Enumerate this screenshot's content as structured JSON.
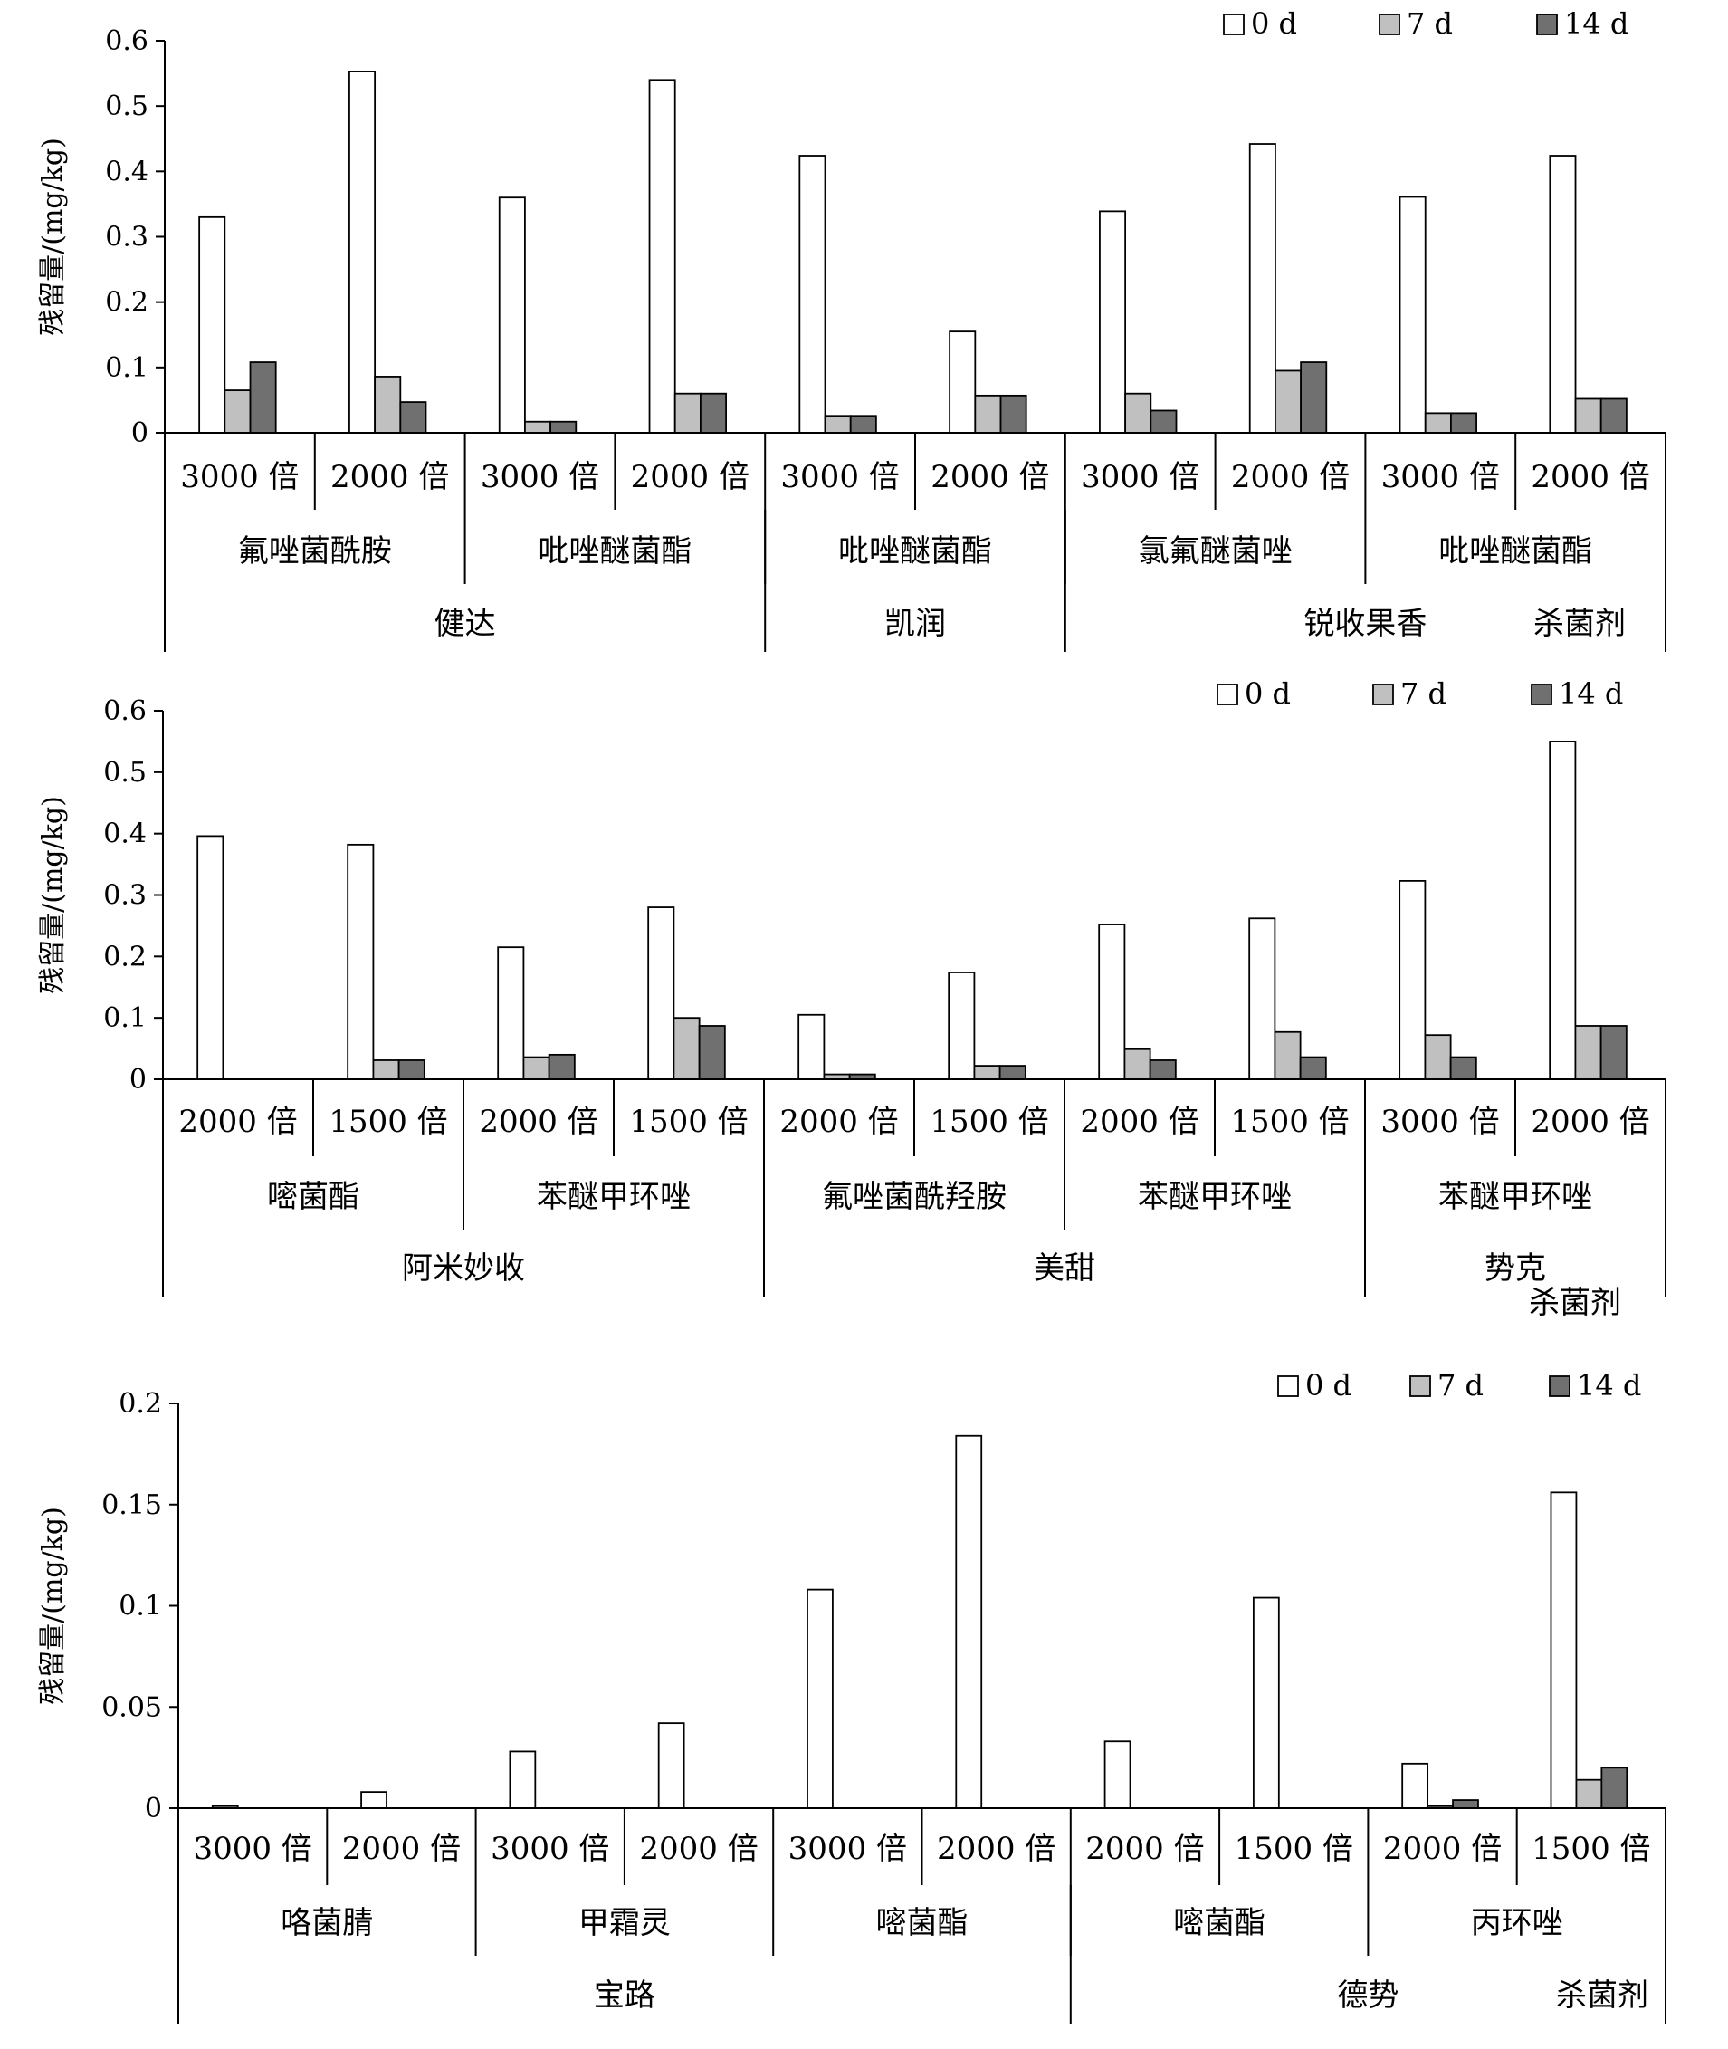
{
  "chart_data": [
    {
      "type": "bar",
      "ylabel": "残留量/(mg/kg)",
      "ylim": [
        0,
        0.6
      ],
      "yticks": [
        "0",
        "0.1",
        "0.2",
        "0.3",
        "0.4",
        "0.5",
        "0.6"
      ],
      "legend_position": "top-right",
      "series_names": [
        "0 d",
        "7 d",
        "14 d"
      ],
      "series_colors": [
        "#ffffff",
        "#c0c0c0",
        "#707070"
      ],
      "categories": [
        "3000 倍",
        "2000 倍",
        "3000 倍",
        "2000 倍",
        "3000 倍",
        "2000 倍",
        "3000 倍",
        "2000 倍",
        "3000 倍",
        "2000 倍"
      ],
      "values": [
        [
          0.33,
          0.065,
          0.108
        ],
        [
          0.553,
          0.086,
          0.047
        ],
        [
          0.36,
          0.017,
          0.017
        ],
        [
          0.54,
          0.06,
          0.06
        ],
        [
          0.424,
          0.026,
          0.026
        ],
        [
          0.155,
          0.057,
          0.057
        ],
        [
          0.339,
          0.06,
          0.034
        ],
        [
          0.442,
          0.095,
          0.108
        ],
        [
          0.361,
          0.03,
          0.03
        ],
        [
          0.424,
          0.052,
          0.052
        ]
      ],
      "groups": [
        {
          "label": "氟唑菌酰胺",
          "span": [
            0,
            2
          ]
        },
        {
          "label": "吡唑醚菌酯",
          "span": [
            2,
            4
          ]
        },
        {
          "label": "吡唑醚菌酯",
          "span": [
            4,
            6
          ]
        },
        {
          "label": "氯氟醚菌唑",
          "span": [
            6,
            8
          ]
        },
        {
          "label": "吡唑醚菌酯",
          "span": [
            8,
            10
          ]
        }
      ],
      "products": [
        {
          "label": "健达",
          "span": [
            0,
            4
          ]
        },
        {
          "label": "凯润",
          "span": [
            4,
            6
          ]
        },
        {
          "label": "锐收果香",
          "span": [
            6,
            10
          ]
        }
      ],
      "corner_label": "杀菌剂"
    },
    {
      "type": "bar",
      "ylabel": "残留量/(mg/kg)",
      "ylim": [
        0,
        0.6
      ],
      "yticks": [
        "0",
        "0.1",
        "0.2",
        "0.3",
        "0.4",
        "0.5",
        "0.6"
      ],
      "legend_position": "top-right",
      "series_names": [
        "0 d",
        "7 d",
        "14 d"
      ],
      "series_colors": [
        "#ffffff",
        "#c0c0c0",
        "#707070"
      ],
      "categories": [
        "2000 倍",
        "1500 倍",
        "2000 倍",
        "1500 倍",
        "2000 倍",
        "1500 倍",
        "2000 倍",
        "1500 倍",
        "3000 倍",
        "2000 倍"
      ],
      "values": [
        [
          0.396,
          0.0,
          0.0
        ],
        [
          0.382,
          0.031,
          0.031
        ],
        [
          0.215,
          0.036,
          0.04
        ],
        [
          0.28,
          0.1,
          0.087
        ],
        [
          0.105,
          0.008,
          0.008
        ],
        [
          0.174,
          0.022,
          0.022
        ],
        [
          0.252,
          0.049,
          0.031
        ],
        [
          0.262,
          0.077,
          0.036
        ],
        [
          0.323,
          0.072,
          0.036
        ],
        [
          0.55,
          0.087,
          0.087
        ]
      ],
      "groups": [
        {
          "label": "嘧菌酯",
          "span": [
            0,
            2
          ]
        },
        {
          "label": "苯醚甲环唑",
          "span": [
            2,
            4
          ]
        },
        {
          "label": "氟唑菌酰羟胺",
          "span": [
            4,
            6
          ]
        },
        {
          "label": "苯醚甲环唑",
          "span": [
            6,
            8
          ]
        },
        {
          "label": "苯醚甲环唑",
          "span": [
            8,
            10
          ]
        }
      ],
      "products": [
        {
          "label": "阿米妙收",
          "span": [
            0,
            4
          ]
        },
        {
          "label": "美甜",
          "span": [
            4,
            8
          ]
        },
        {
          "label": "势克",
          "span": [
            8,
            10
          ]
        }
      ],
      "corner_label": "杀菌剂"
    },
    {
      "type": "bar",
      "ylabel": "残留量/(mg/kg)",
      "ylim": [
        0,
        0.2
      ],
      "yticks": [
        "0",
        "0.05",
        "0.1",
        "0.15",
        "0.2"
      ],
      "legend_position": "top-right",
      "series_names": [
        "0 d",
        "7 d",
        "14 d"
      ],
      "series_colors": [
        "#ffffff",
        "#c0c0c0",
        "#707070"
      ],
      "categories": [
        "3000 倍",
        "2000 倍",
        "3000 倍",
        "2000 倍",
        "3000 倍",
        "2000 倍",
        "2000 倍",
        "1500 倍",
        "2000 倍",
        "1500 倍"
      ],
      "values": [
        [
          0.001,
          0.0,
          0.0
        ],
        [
          0.008,
          0.0,
          0.0
        ],
        [
          0.028,
          0.0,
          0.0
        ],
        [
          0.042,
          0.0,
          0.0
        ],
        [
          0.108,
          0.0,
          0.0
        ],
        [
          0.184,
          0.0,
          0.0
        ],
        [
          0.033,
          0.0,
          0.0
        ],
        [
          0.104,
          0.0,
          0.0
        ],
        [
          0.022,
          0.001,
          0.004
        ],
        [
          0.156,
          0.014,
          0.02
        ]
      ],
      "groups": [
        {
          "label": "咯菌腈",
          "span": [
            0,
            2
          ]
        },
        {
          "label": "甲霜灵",
          "span": [
            2,
            4
          ]
        },
        {
          "label": "嘧菌酯",
          "span": [
            4,
            6
          ]
        },
        {
          "label": "嘧菌酯",
          "span": [
            6,
            8
          ]
        },
        {
          "label": "丙环唑",
          "span": [
            8,
            10
          ]
        }
      ],
      "products": [
        {
          "label": "宝路",
          "span": [
            0,
            6
          ]
        },
        {
          "label": "德势",
          "span": [
            6,
            10
          ]
        }
      ],
      "corner_label": "杀菌剂"
    }
  ]
}
